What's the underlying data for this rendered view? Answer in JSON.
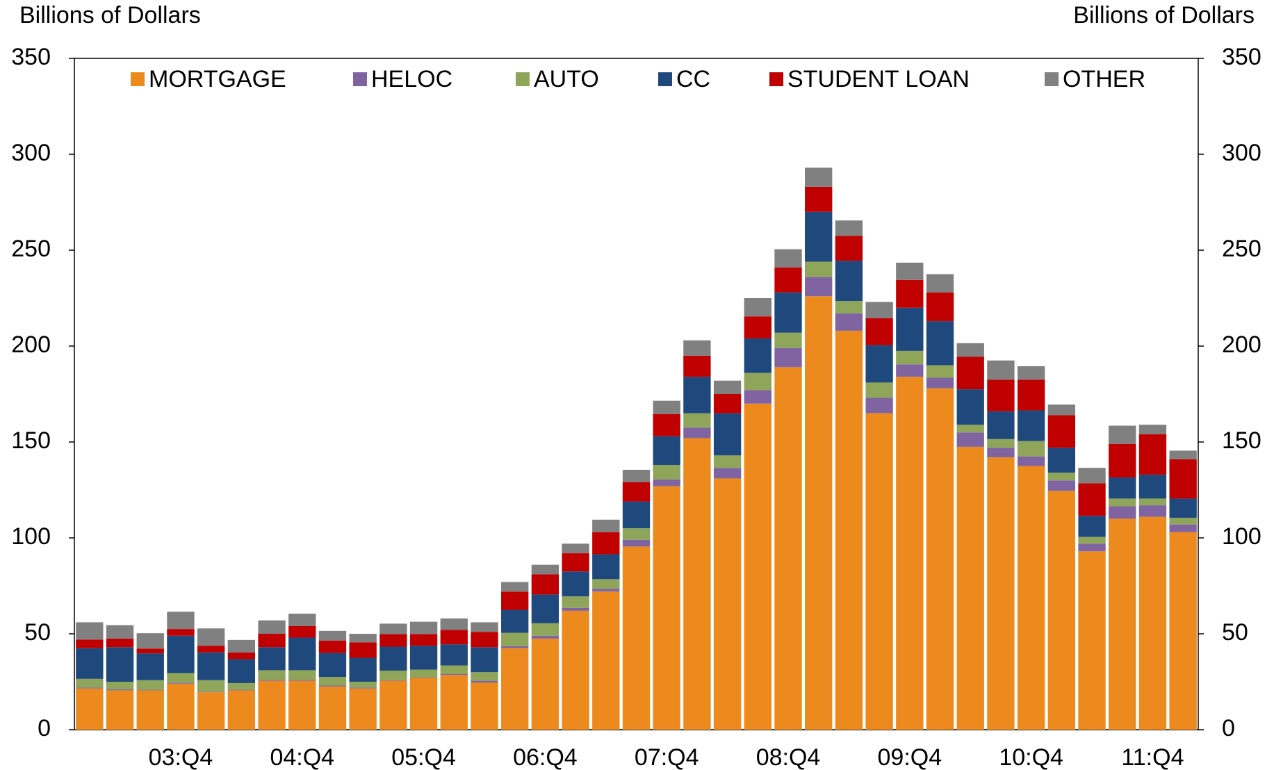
{
  "chart_data": {
    "type": "stacked_bar",
    "y_label": "Billions of Dollars",
    "y2_label": "Billions of Dollars",
    "categories": [
      null,
      null,
      null,
      "03:Q4",
      null,
      null,
      null,
      "04:Q4",
      null,
      null,
      null,
      "05:Q4",
      null,
      null,
      null,
      "06:Q4",
      null,
      null,
      null,
      "07:Q4",
      null,
      null,
      null,
      "08:Q4",
      null,
      null,
      null,
      "09:Q4",
      null,
      null,
      null,
      "10:Q4",
      null,
      null,
      null,
      "11:Q4",
      null
    ],
    "series": [
      {
        "name": "MORTGAGE",
        "color": "#ED8A1E",
        "values": [
          21.5,
          20.5,
          20.5,
          24,
          19.5,
          20.5,
          25.5,
          25.5,
          22.5,
          21.5,
          25.5,
          27,
          28.5,
          24.5,
          42.5,
          47.5,
          62,
          72,
          95.5,
          127,
          152,
          131,
          170,
          189,
          226,
          208,
          165,
          184,
          178,
          147.5,
          142,
          137.5,
          124.5,
          93,
          110,
          111,
          103
        ]
      },
      {
        "name": "HELOC",
        "color": "#8064A2",
        "values": [
          0.5,
          0.5,
          0.3,
          0.5,
          0.3,
          0.3,
          0.5,
          0.5,
          0.5,
          0.5,
          0.3,
          0.3,
          0.5,
          1,
          1,
          1.5,
          1.5,
          1.5,
          3.5,
          3.5,
          5.5,
          5.5,
          7,
          10,
          10,
          9,
          8,
          6.5,
          5.5,
          7.5,
          5,
          5,
          5.5,
          4,
          6.5,
          6,
          4
        ]
      },
      {
        "name": "AUTO",
        "color": "#8EA55A",
        "values": [
          4.5,
          4,
          5,
          5,
          6,
          3.5,
          5,
          5,
          4.5,
          3,
          5,
          4,
          4.5,
          4.5,
          7,
          6.5,
          6,
          5,
          6,
          7.5,
          7.5,
          6.5,
          9,
          8,
          8,
          6.5,
          8,
          7,
          6.5,
          4,
          4.5,
          8,
          4,
          3.5,
          4,
          3.5,
          3.5
        ]
      },
      {
        "name": "CC",
        "color": "#1F497D",
        "values": [
          16,
          18,
          14,
          19.5,
          14.5,
          12.5,
          12,
          17,
          12.5,
          12.5,
          12.5,
          12.5,
          11,
          13,
          12,
          15,
          13,
          13,
          14,
          15,
          19,
          22,
          18,
          21,
          26,
          21,
          19.5,
          22.5,
          23,
          18.5,
          14.5,
          16,
          13,
          11,
          11,
          12.5,
          10
        ]
      },
      {
        "name": "STUDENT LOAN",
        "color": "#C00000",
        "values": [
          4.5,
          4.5,
          2.5,
          3.5,
          3.5,
          3.5,
          7,
          6,
          6.5,
          8,
          6.5,
          6,
          7.5,
          8,
          9.5,
          10.5,
          9.5,
          11.5,
          10,
          11.5,
          11,
          10,
          11.5,
          13,
          13,
          13,
          14,
          14.5,
          15,
          17,
          16.5,
          16,
          17,
          17,
          17.5,
          21,
          20.5
        ]
      },
      {
        "name": "OTHER",
        "color": "#808080",
        "values": [
          9,
          7,
          8,
          9,
          9,
          6.5,
          7,
          6.5,
          5,
          4.5,
          5.5,
          6.5,
          6,
          5,
          5,
          5,
          5,
          6.5,
          6.5,
          7,
          8,
          7,
          9.5,
          9.5,
          10,
          8,
          8.5,
          9,
          9.5,
          7,
          10,
          7,
          5.5,
          8,
          9.5,
          5,
          4.5
        ]
      }
    ],
    "ylim": [
      0,
      350
    ],
    "yticks": [
      0,
      50,
      100,
      150,
      200,
      250,
      300,
      350
    ],
    "y2lim": [
      0,
      350
    ],
    "y2ticks": [
      0,
      50,
      100,
      150,
      200,
      250,
      300,
      350
    ]
  }
}
